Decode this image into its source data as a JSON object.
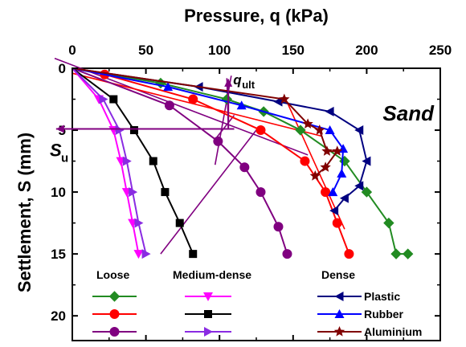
{
  "chart_data": {
    "type": "line",
    "xlabel": "Pressure, q (kPa)",
    "ylabel": "Settlement, S (mm)",
    "xlim": [
      0,
      250
    ],
    "ylim": [
      0,
      22
    ],
    "x_ticks": [
      "0",
      "50",
      "100",
      "150",
      "200",
      "250"
    ],
    "y_ticks": [
      "0",
      "5",
      "10",
      "15",
      "20"
    ],
    "grid": false,
    "legend_placement": "bottom",
    "annotations": {
      "sand": "Sand",
      "q_ult_main": "q",
      "q_ult_sub": "ult",
      "s_u_main": "S",
      "s_u_sub": "u"
    },
    "legend_groups": [
      "Loose",
      "Medium-dense",
      "Dense"
    ],
    "series": [
      {
        "group": "Loose",
        "color": "#228B22",
        "marker": "diamond",
        "x": [
          0,
          60,
          105,
          130,
          155,
          185,
          200,
          215,
          220,
          228
        ],
        "y": [
          0,
          1.2,
          2.5,
          3.5,
          5.0,
          7.5,
          10.0,
          12.5,
          15.0,
          15.0
        ]
      },
      {
        "group": "Loose",
        "color": "#FF0000",
        "marker": "circle",
        "x": [
          0,
          22,
          82,
          128,
          158,
          172,
          180,
          188
        ],
        "y": [
          0,
          0.5,
          2.5,
          5.0,
          7.5,
          10.0,
          12.5,
          15.0
        ]
      },
      {
        "group": "Loose",
        "color": "#800080",
        "marker": "circle",
        "x": [
          0,
          66,
          99,
          117,
          128,
          140,
          146
        ],
        "y": [
          0,
          3.0,
          5.9,
          8.0,
          10.0,
          12.8,
          15.0
        ]
      },
      {
        "group": "Medium-dense",
        "color": "#FF00FF",
        "marker": "triangle-down",
        "x": [
          0,
          18,
          28,
          33,
          37,
          41,
          45
        ],
        "y": [
          0,
          2.5,
          5.0,
          7.5,
          10.0,
          12.5,
          15.0
        ]
      },
      {
        "group": "Medium-dense",
        "color": "#000000",
        "marker": "square",
        "x": [
          0,
          28,
          42,
          55,
          63,
          73,
          82
        ],
        "y": [
          0,
          2.5,
          5.0,
          7.5,
          10.0,
          12.5,
          15.0
        ]
      },
      {
        "group": "Medium-dense",
        "color": "#8A2BE2",
        "marker": "triangle-right",
        "x": [
          0,
          21,
          32,
          37,
          41,
          45,
          50
        ],
        "y": [
          0,
          2.5,
          5.0,
          7.5,
          10.0,
          12.5,
          15.0
        ]
      },
      {
        "group": "Dense",
        "name": "Plastic",
        "color": "#000080",
        "marker": "triangle-left",
        "x": [
          0,
          86,
          140,
          175,
          195,
          200,
          195,
          185,
          178
        ],
        "y": [
          0,
          1.5,
          2.7,
          3.5,
          5.0,
          7.5,
          9.5,
          10.5,
          11.5
        ]
      },
      {
        "group": "Dense",
        "name": "Rubber",
        "color": "#0000FF",
        "marker": "triangle-up",
        "x": [
          0,
          65,
          115,
          175,
          184,
          183,
          177
        ],
        "y": [
          0,
          1.5,
          3.0,
          5.0,
          6.5,
          8.5,
          10.0
        ]
      },
      {
        "group": "Dense",
        "name": "Aluminium",
        "color": "#800000",
        "marker": "star",
        "x": [
          0,
          144,
          160,
          168,
          173,
          180,
          172,
          165
        ],
        "y": [
          0,
          2.5,
          4.5,
          5.0,
          6.7,
          6.7,
          8.0,
          8.7
        ]
      }
    ],
    "construction_lines": [
      {
        "color": "#800080",
        "x": [
          -12,
          160
        ],
        "y": [
          -0.8,
          7.0
        ]
      },
      {
        "color": "#800080",
        "x": [
          125,
          60
        ],
        "y": [
          5.0,
          15.0
        ]
      },
      {
        "color": "#800080",
        "x": [
          108,
          97
        ],
        "y": [
          0.6,
          7.8
        ]
      },
      {
        "color": "#800080",
        "x": [
          98,
          110
        ],
        "y": [
          5.6,
          3.8
        ]
      },
      {
        "color": "#800080",
        "x": [
          105,
          106
        ],
        "y": [
          0.8,
          4.9
        ]
      },
      {
        "color": "#FF0000",
        "x": [
          145,
          185
        ],
        "y": [
          2.5,
          13.0
        ]
      },
      {
        "color": "#FF0000",
        "x": [
          0,
          170
        ],
        "y": [
          0.4,
          5.5
        ]
      }
    ]
  }
}
